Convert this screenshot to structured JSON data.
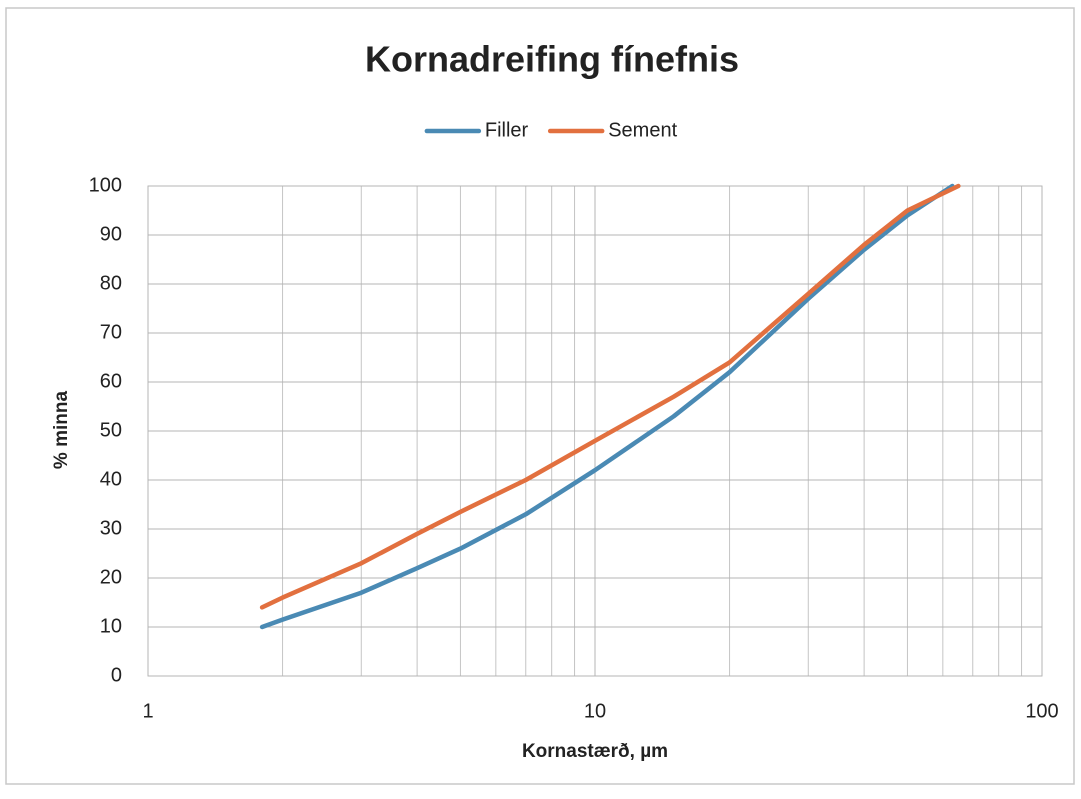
{
  "chart_data": {
    "type": "line",
    "title": "Kornadreifing fínefnis",
    "xlabel": "Kornastærð, µm",
    "ylabel": "% minna",
    "xscale": "log",
    "xlim": [
      1,
      100
    ],
    "xticks": [
      1,
      10,
      100
    ],
    "xminorticks": [
      2,
      3,
      4,
      5,
      6,
      7,
      8,
      9,
      20,
      30,
      40,
      50,
      60,
      70,
      80,
      90
    ],
    "ylim": [
      0,
      100
    ],
    "yticks": [
      0,
      10,
      20,
      30,
      40,
      50,
      60,
      70,
      80,
      90,
      100
    ],
    "grid": true,
    "legend": "top",
    "series": [
      {
        "name": "Filler",
        "color": "#4a8ab4",
        "x": [
          1.8,
          2,
          3,
          4,
          5,
          7,
          10,
          15,
          20,
          30,
          40,
          50,
          63
        ],
        "values": [
          10,
          11.5,
          17,
          22,
          26,
          33,
          42,
          53,
          62,
          77,
          87,
          94,
          100
        ]
      },
      {
        "name": "Sement",
        "color": "#e2703f",
        "x": [
          1.8,
          2,
          3,
          4,
          5,
          7,
          10,
          15,
          20,
          30,
          40,
          50,
          65
        ],
        "values": [
          14,
          16,
          23,
          29,
          33.5,
          40,
          48,
          57,
          64,
          78,
          88,
          95,
          100
        ]
      }
    ]
  }
}
